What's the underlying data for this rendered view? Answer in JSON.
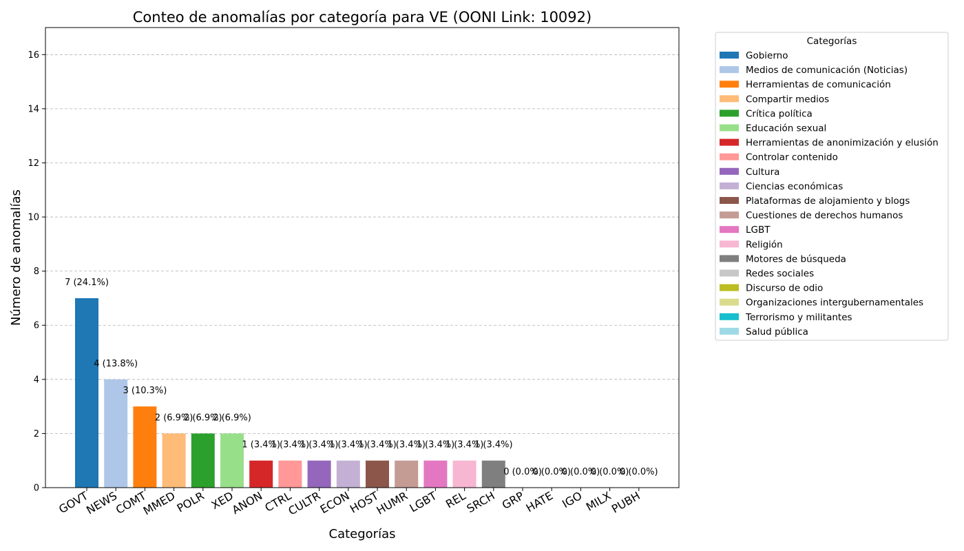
{
  "chart_data": {
    "type": "bar",
    "title": "Conteo de anomalías por categoría para VE (OONI Link: 10092)",
    "xlabel": "Categorías",
    "ylabel": "Número de anomalías",
    "ylim": [
      0,
      17
    ],
    "yticks": [
      0,
      2,
      4,
      6,
      8,
      10,
      12,
      14,
      16
    ],
    "grid": "horizontal-dashed",
    "legend_title": "Categorías",
    "legend_position": "outside-right-top",
    "categories": [
      "GOVT",
      "NEWS",
      "COMT",
      "MMED",
      "POLR",
      "XED",
      "ANON",
      "CTRL",
      "CULTR",
      "ECON",
      "HOST",
      "HUMR",
      "LGBT",
      "REL",
      "SRCH",
      "GRP",
      "HATE",
      "IGO",
      "MILX",
      "PUBH"
    ],
    "values": [
      7,
      4,
      3,
      2,
      2,
      2,
      1,
      1,
      1,
      1,
      1,
      1,
      1,
      1,
      1,
      0,
      0,
      0,
      0,
      0
    ],
    "data_labels": [
      "7 (24.1%)",
      "4 (13.8%)",
      "3 (10.3%)",
      "2 (6.9%)",
      "2 (6.9%)",
      "2 (6.9%)",
      "1 (3.4%)",
      "1 (3.4%)",
      "1 (3.4%)",
      "1 (3.4%)",
      "1 (3.4%)",
      "1 (3.4%)",
      "1 (3.4%)",
      "1 (3.4%)",
      "1 (3.4%)",
      "0 (0.0%)",
      "0 (0.0%)",
      "0 (0.0%)",
      "0 (0.0%)",
      "0 (0.0%)"
    ],
    "legend_labels": [
      "Gobierno",
      "Medios de comunicación (Noticias)",
      "Herramientas de comunicación",
      "Compartir medios",
      "Crítica política",
      "Educación sexual",
      "Herramientas de anonimización y elusión",
      "Controlar contenido",
      "Cultura",
      "Ciencias económicas",
      "Plataformas de alojamiento y blogs",
      "Cuestiones de derechos humanos",
      "LGBT",
      "Religión",
      "Motores de búsqueda",
      "Redes sociales",
      "Discurso de odio",
      "Organizaciones intergubernamentales",
      "Terrorismo y militantes",
      "Salud pública"
    ],
    "colors": [
      "#1f77b4",
      "#aec7e8",
      "#ff7f0e",
      "#ffbb78",
      "#2ca02c",
      "#98df8a",
      "#d62728",
      "#ff9896",
      "#9467bd",
      "#c5b0d5",
      "#8c564b",
      "#c49c94",
      "#e377c2",
      "#f7b6d2",
      "#7f7f7f",
      "#c7c7c7",
      "#bcbd22",
      "#dbdb8d",
      "#17becf",
      "#9edae5"
    ]
  }
}
